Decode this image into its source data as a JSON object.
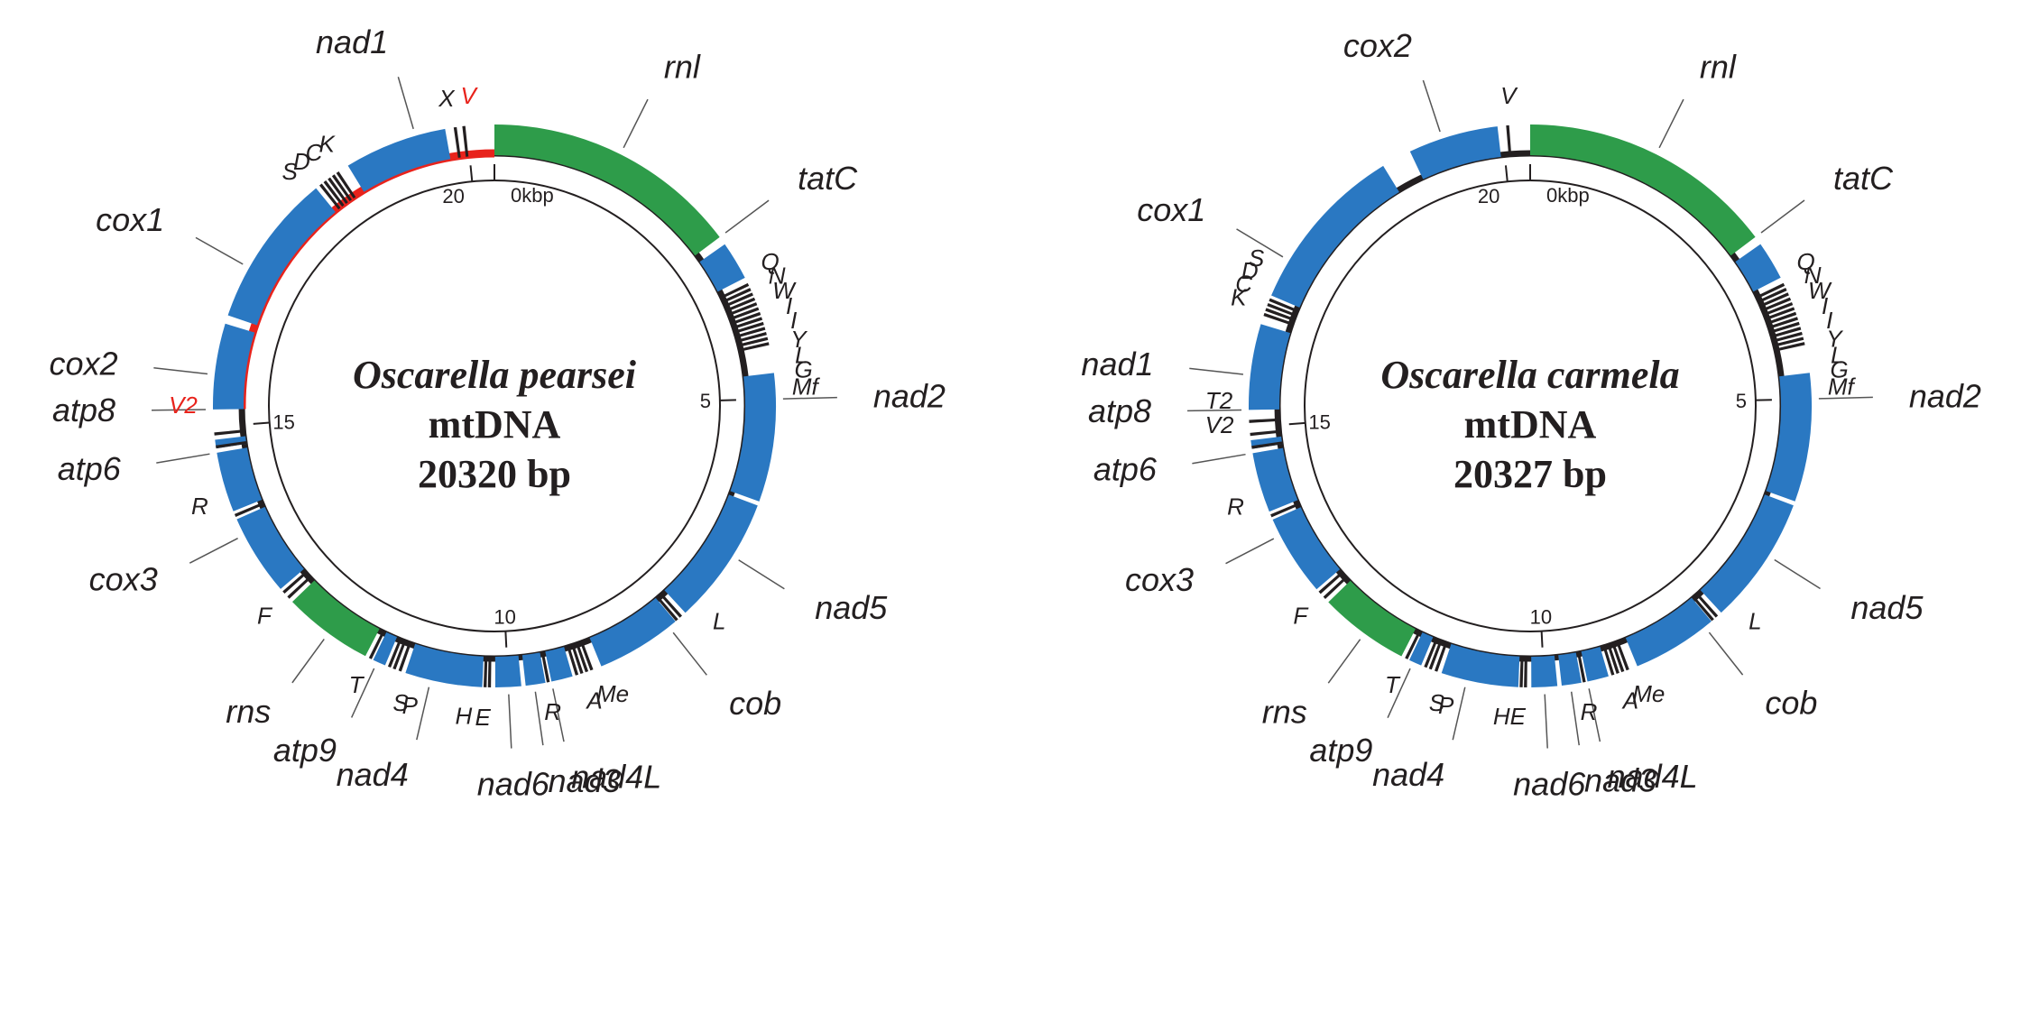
{
  "colors": {
    "protein": "#2a78c2",
    "rrna": "#2e9c4a",
    "trna": "#231f20",
    "backbone": "#231f20",
    "highlight": "#e8231c",
    "text": "#231f20",
    "leader": "#555555"
  },
  "maps": [
    {
      "species": "Oscarella pearsei",
      "line2": "mtDNA",
      "line3": "20320 bp",
      "total_bp": 20320,
      "ticks": [
        {
          "kbp": 0,
          "label": "0kbp"
        },
        {
          "kbp": 5,
          "label": "5"
        },
        {
          "kbp": 10,
          "label": "10"
        },
        {
          "kbp": 15,
          "label": "15"
        },
        {
          "kbp": 20,
          "label": "20"
        }
      ],
      "highlight_arc_kbp": [
        15.2,
        20.32
      ],
      "genes": [
        {
          "name": "rnl",
          "type": "rrna",
          "start": 0.0,
          "end": 3.0,
          "label_kbp": 1.5
        },
        {
          "name": "tatC",
          "type": "protein",
          "start": 3.1,
          "end": 3.55,
          "label_kbp": 3.0
        },
        {
          "name": "nad2",
          "type": "protein",
          "start": 4.7,
          "end": 6.2,
          "label_kbp": 5.0
        },
        {
          "name": "nad5",
          "type": "protein",
          "start": 6.25,
          "end": 7.75,
          "label_kbp": 6.9
        },
        {
          "name": "cob",
          "type": "protein",
          "start": 7.9,
          "end": 8.9,
          "label_kbp": 8.0
        },
        {
          "name": "nad4L",
          "type": "protein",
          "start": 9.25,
          "end": 9.5,
          "label_kbp": 9.5
        },
        {
          "name": "nad3",
          "type": "protein",
          "start": 9.57,
          "end": 9.8,
          "label_kbp": 9.7
        },
        {
          "name": "nad6",
          "type": "protein",
          "start": 9.85,
          "end": 10.15,
          "label_kbp": 10.0
        },
        {
          "name": "nad4",
          "type": "protein",
          "start": 10.3,
          "end": 11.2,
          "label_kbp": 10.9
        },
        {
          "name": "atp9",
          "type": "protein",
          "start": 11.45,
          "end": 11.6,
          "label_kbp": 11.55
        },
        {
          "name": "rns",
          "type": "rrna",
          "start": 11.7,
          "end": 12.75,
          "label_kbp": 12.2
        },
        {
          "name": "cox3",
          "type": "protein",
          "start": 12.95,
          "end": 13.9,
          "label_kbp": 13.7
        },
        {
          "name": "atp6",
          "type": "protein",
          "start": 14.0,
          "end": 14.7,
          "label_kbp": 14.7
        },
        {
          "name": "atp8",
          "type": "protein",
          "start": 14.75,
          "end": 14.85,
          "label_kbp": 15.2
        },
        {
          "name": "cox2",
          "type": "protein",
          "start": 15.2,
          "end": 16.2,
          "label_kbp": 15.6
        },
        {
          "name": "cox1",
          "type": "protein",
          "start": 16.3,
          "end": 18.1,
          "label_kbp": 16.9
        },
        {
          "name": "nad1",
          "type": "protein",
          "start": 18.55,
          "end": 19.75,
          "label_kbp": 19.4
        }
      ],
      "trnas": [
        3.62,
        3.68,
        3.74,
        3.8,
        3.86,
        3.92,
        3.98,
        4.04,
        4.1,
        4.16,
        4.22,
        4.28,
        4.34,
        7.8,
        7.86,
        9.0,
        9.06,
        9.12,
        9.18,
        9.52,
        10.2,
        10.25,
        11.25,
        11.32,
        11.38,
        11.62,
        12.8,
        12.88,
        13.93,
        14.75,
        14.9,
        18.15,
        18.21,
        18.27,
        18.33,
        18.39,
        19.85,
        19.95
      ],
      "trna_labels": [
        {
          "text": "Q",
          "kbp": 3.52
        },
        {
          "text": "N",
          "kbp": 3.68
        },
        {
          "text": "W",
          "kbp": 3.85
        },
        {
          "text": "I",
          "kbp": 4.02
        },
        {
          "text": "I",
          "kbp": 4.18
        },
        {
          "text": "Y",
          "kbp": 4.38
        },
        {
          "text": "L",
          "kbp": 4.55
        },
        {
          "text": "G",
          "kbp": 4.7
        },
        {
          "text": "Mf",
          "kbp": 4.88
        },
        {
          "text": "L",
          "kbp": 7.55
        },
        {
          "text": "A",
          "kbp": 9.1
        },
        {
          "text": "Me",
          "kbp": 8.9
        },
        {
          "text": "R",
          "kbp": 9.55
        },
        {
          "text": "E",
          "kbp": 10.28
        },
        {
          "text": "H",
          "kbp": 10.48
        },
        {
          "text": "P",
          "kbp": 11.05
        },
        {
          "text": "S",
          "kbp": 11.15
        },
        {
          "text": "T",
          "kbp": 11.65
        },
        {
          "text": "F",
          "kbp": 12.85
        },
        {
          "text": "R",
          "kbp": 14.18
        },
        {
          "text": "V2",
          "kbp": 15.25,
          "red": true
        },
        {
          "text": "K",
          "kbp": 18.48
        },
        {
          "text": "C",
          "kbp": 18.32
        },
        {
          "text": "D",
          "kbp": 18.16
        },
        {
          "text": "S",
          "kbp": 18.0
        },
        {
          "text": "X",
          "kbp": 19.82
        },
        {
          "text": "V",
          "kbp": 20.05,
          "red": true
        }
      ]
    },
    {
      "species": "Oscarella carmela",
      "line2": "mtDNA",
      "line3": "20327 bp",
      "total_bp": 20327,
      "ticks": [
        {
          "kbp": 0,
          "label": "0kbp"
        },
        {
          "kbp": 5,
          "label": "5"
        },
        {
          "kbp": 10,
          "label": "10"
        },
        {
          "kbp": 15,
          "label": "15"
        },
        {
          "kbp": 20,
          "label": "20"
        }
      ],
      "genes": [
        {
          "name": "rnl",
          "type": "rrna",
          "start": 0.0,
          "end": 3.0,
          "label_kbp": 1.5
        },
        {
          "name": "tatC",
          "type": "protein",
          "start": 3.1,
          "end": 3.55,
          "label_kbp": 3.0
        },
        {
          "name": "nad2",
          "type": "protein",
          "start": 4.7,
          "end": 6.2,
          "label_kbp": 5.0
        },
        {
          "name": "nad5",
          "type": "protein",
          "start": 6.25,
          "end": 7.75,
          "label_kbp": 6.9
        },
        {
          "name": "cob",
          "type": "protein",
          "start": 7.9,
          "end": 8.9,
          "label_kbp": 8.0
        },
        {
          "name": "nad4L",
          "type": "protein",
          "start": 9.25,
          "end": 9.5,
          "label_kbp": 9.5
        },
        {
          "name": "nad3",
          "type": "protein",
          "start": 9.57,
          "end": 9.8,
          "label_kbp": 9.7
        },
        {
          "name": "nad6",
          "type": "protein",
          "start": 9.85,
          "end": 10.15,
          "label_kbp": 10.0
        },
        {
          "name": "nad4",
          "type": "protein",
          "start": 10.3,
          "end": 11.2,
          "label_kbp": 10.9
        },
        {
          "name": "atp9",
          "type": "protein",
          "start": 11.45,
          "end": 11.6,
          "label_kbp": 11.55
        },
        {
          "name": "rns",
          "type": "rrna",
          "start": 11.7,
          "end": 12.75,
          "label_kbp": 12.2
        },
        {
          "name": "cox3",
          "type": "protein",
          "start": 12.95,
          "end": 13.9,
          "label_kbp": 13.7
        },
        {
          "name": "atp6",
          "type": "protein",
          "start": 14.0,
          "end": 14.7,
          "label_kbp": 14.7
        },
        {
          "name": "atp8",
          "type": "protein",
          "start": 14.75,
          "end": 14.85,
          "label_kbp": 15.2
        },
        {
          "name": "nad1",
          "type": "protein",
          "start": 15.2,
          "end": 16.2,
          "label_kbp": 15.6
        },
        {
          "name": "cox1",
          "type": "protein",
          "start": 16.55,
          "end": 18.55,
          "label_kbp": 17.0
        },
        {
          "name": "cox2",
          "type": "protein",
          "start": 18.9,
          "end": 19.95,
          "label_kbp": 19.3
        }
      ],
      "trnas": [
        3.62,
        3.68,
        3.74,
        3.8,
        3.86,
        3.92,
        3.98,
        4.04,
        4.1,
        4.16,
        4.22,
        4.28,
        4.34,
        7.8,
        7.86,
        9.0,
        9.06,
        9.12,
        9.18,
        9.52,
        10.2,
        10.25,
        11.25,
        11.32,
        11.38,
        11.62,
        12.8,
        12.88,
        13.93,
        14.75,
        14.9,
        15.05,
        16.3,
        16.36,
        16.42,
        16.48,
        20.05
      ],
      "trna_labels": [
        {
          "text": "Q",
          "kbp": 3.52
        },
        {
          "text": "N",
          "kbp": 3.68
        },
        {
          "text": "W",
          "kbp": 3.85
        },
        {
          "text": "I",
          "kbp": 4.02
        },
        {
          "text": "I",
          "kbp": 4.18
        },
        {
          "text": "Y",
          "kbp": 4.38
        },
        {
          "text": "L",
          "kbp": 4.55
        },
        {
          "text": "G",
          "kbp": 4.7
        },
        {
          "text": "Mf",
          "kbp": 4.88
        },
        {
          "text": "L",
          "kbp": 7.55
        },
        {
          "text": "A",
          "kbp": 9.1
        },
        {
          "text": "Me",
          "kbp": 8.9
        },
        {
          "text": "R",
          "kbp": 9.55
        },
        {
          "text": "HE",
          "kbp": 10.38
        },
        {
          "text": "P",
          "kbp": 11.05
        },
        {
          "text": "S",
          "kbp": 11.15
        },
        {
          "text": "T",
          "kbp": 11.65
        },
        {
          "text": "F",
          "kbp": 12.85
        },
        {
          "text": "R",
          "kbp": 14.18
        },
        {
          "text": "V2",
          "kbp": 15.05
        },
        {
          "text": "T2",
          "kbp": 15.3
        },
        {
          "text": "K",
          "kbp": 16.4
        },
        {
          "text": "C",
          "kbp": 16.55
        },
        {
          "text": "D",
          "kbp": 16.7
        },
        {
          "text": "S",
          "kbp": 16.85
        },
        {
          "text": "V",
          "kbp": 20.1
        }
      ]
    }
  ]
}
